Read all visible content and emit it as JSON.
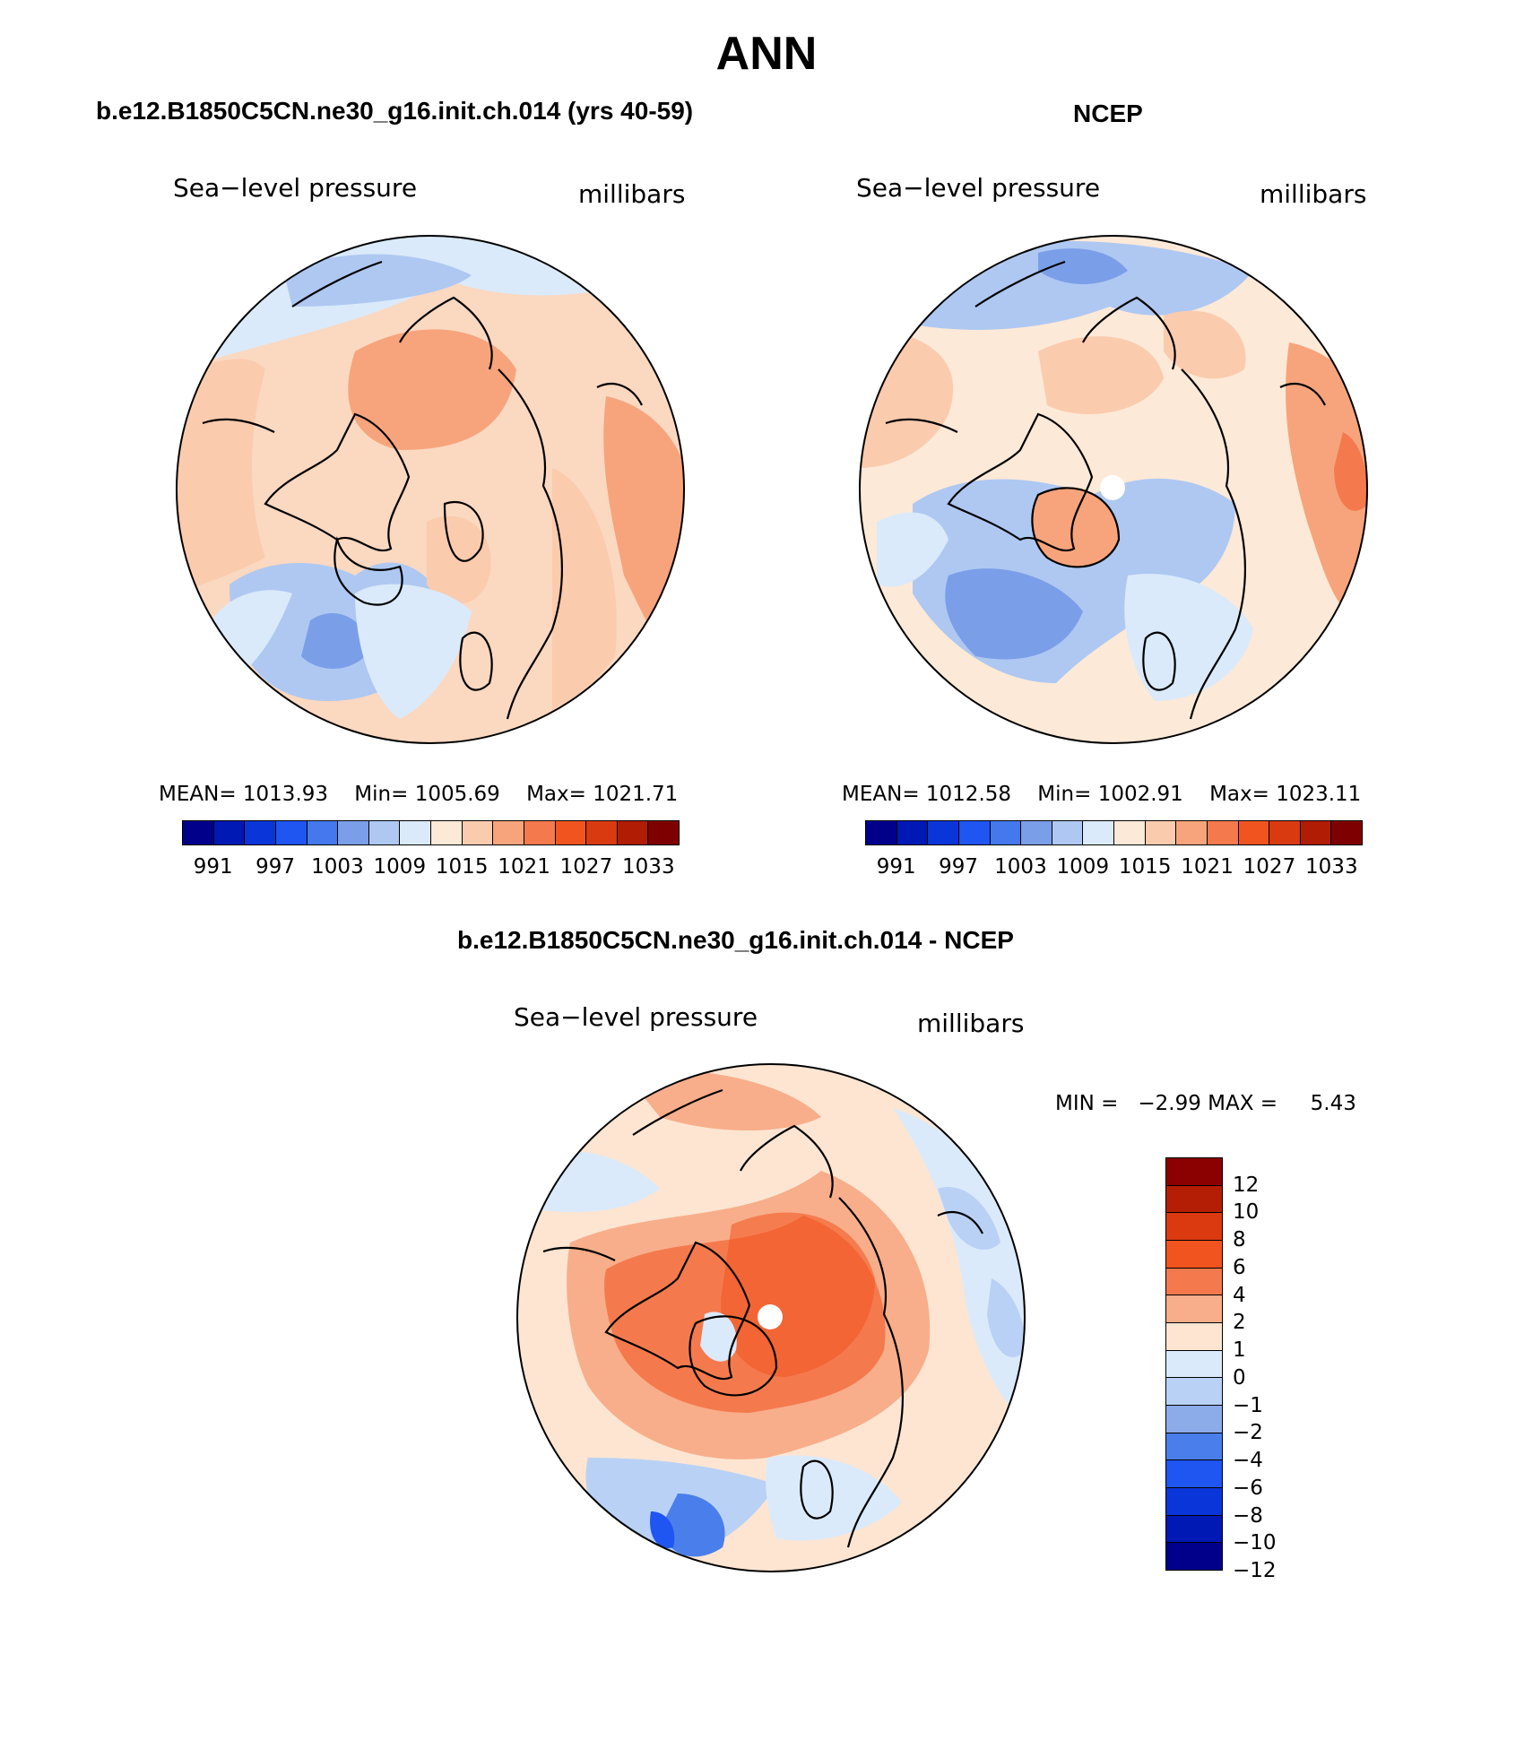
{
  "figure": {
    "title": "ANN"
  },
  "panels": [
    {
      "title": "b.e12.B1850C5CN.ne30_g16.init.ch.014 (yrs 40-59)",
      "variable": "Sea−level pressure",
      "units": "millibars",
      "stats": {
        "mean_label": "MEAN=",
        "mean": "1013.93",
        "min_label": "Min=",
        "min": "1005.69",
        "max_label": "Max=",
        "max": "1021.71"
      }
    },
    {
      "title": "NCEP",
      "variable": "Sea−level pressure",
      "units": "millibars",
      "stats": {
        "mean_label": "MEAN=",
        "mean": "1012.58",
        "min_label": "Min=",
        "min": "1002.91",
        "max_label": "Max=",
        "max": "1023.11"
      }
    },
    {
      "title": "b.e12.B1850C5CN.ne30_g16.init.ch.014 - NCEP",
      "variable": "Sea−level pressure",
      "units": "millibars",
      "stats": {
        "min_label": "MIN =",
        "min": "−2.99",
        "max_label": "MAX =",
        "max": "5.43"
      }
    }
  ],
  "colorbars": {
    "pressure": {
      "colors": [
        "#00008b",
        "#0018b4",
        "#0a35d8",
        "#1f55f0",
        "#4478ec",
        "#7b9ee8",
        "#aec8f2",
        "#daeafa",
        "#fde9d7",
        "#fbcbad",
        "#f7a47c",
        "#f47a4e",
        "#f2541f",
        "#d93a10",
        "#b11c05",
        "#7f0000"
      ],
      "tick_labels": [
        "991",
        "997",
        "1003",
        "1009",
        "1015",
        "1021",
        "1027",
        "1033"
      ]
    },
    "difference": {
      "colors_top_to_bottom": [
        "#8b0000",
        "#b41e05",
        "#db3a10",
        "#f2541f",
        "#f47a4e",
        "#f8ae8a",
        "#fde5d2",
        "#daeafa",
        "#b9d1f5",
        "#8cabe9",
        "#4a7eeb",
        "#1f55f0",
        "#0a35d8",
        "#0018b4",
        "#00008b"
      ],
      "tick_labels": [
        "12",
        "10",
        "8",
        "6",
        "4",
        "2",
        "1",
        "0",
        "−1",
        "−2",
        "−4",
        "−6",
        "−8",
        "−10",
        "−12"
      ]
    }
  }
}
